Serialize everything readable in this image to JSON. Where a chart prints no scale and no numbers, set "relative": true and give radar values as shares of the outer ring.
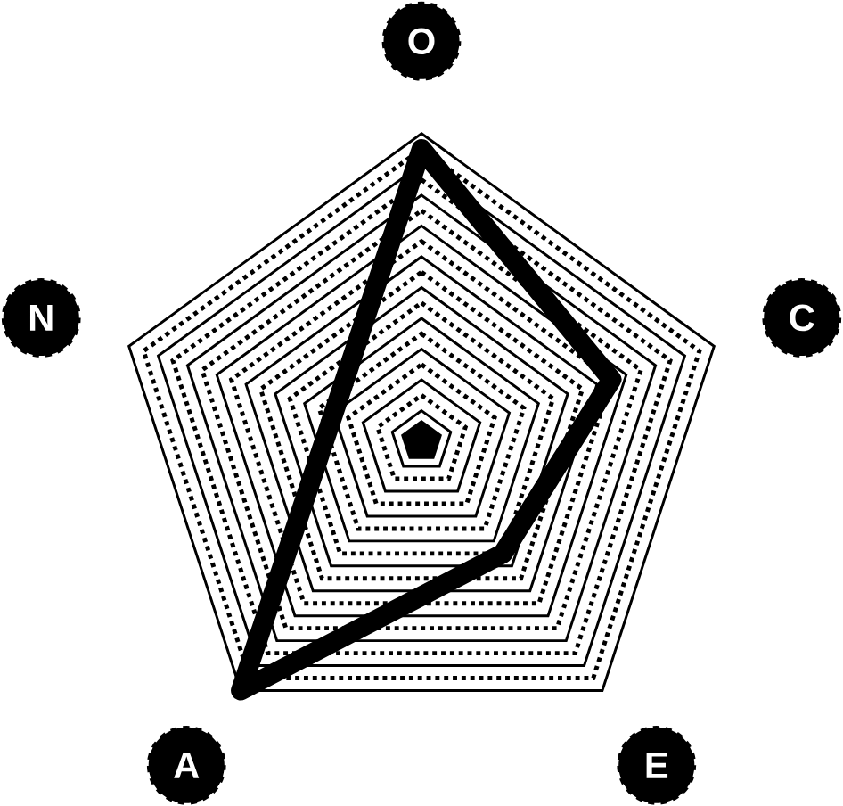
{
  "chart_data": {
    "type": "radar",
    "relative": true,
    "categories": [
      "O",
      "C",
      "E",
      "A",
      "N"
    ],
    "series": [
      {
        "color": "#000000",
        "values": [
          0.95,
          0.65,
          0.45,
          1.0,
          0.3
        ]
      }
    ]
  }
}
